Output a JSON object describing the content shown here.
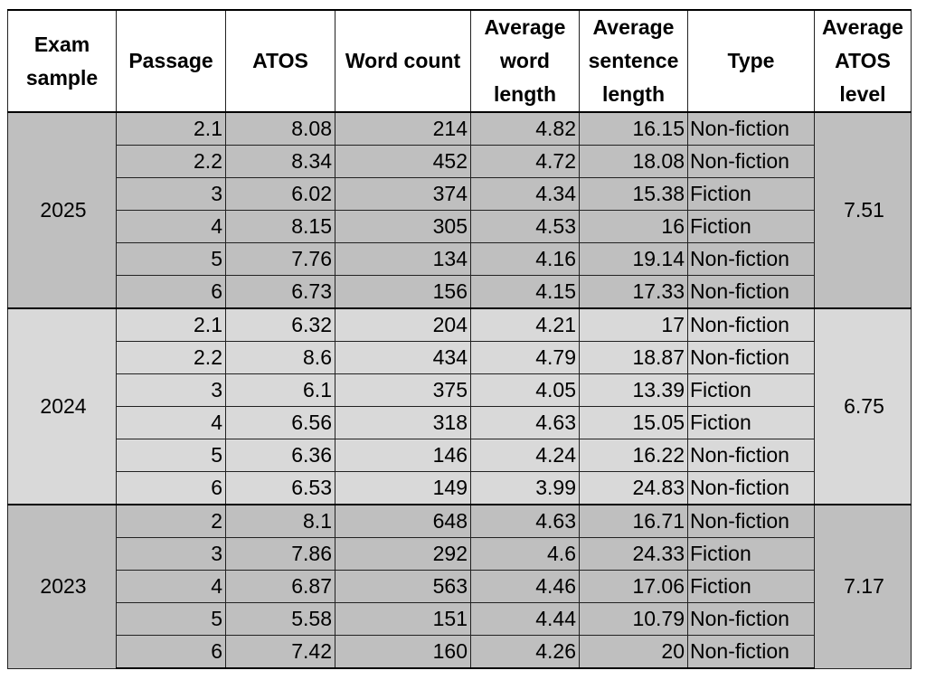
{
  "headers": [
    "Exam sample",
    "Passage",
    "ATOS",
    "Word count",
    "Average word length",
    "Average sentence length",
    "Type",
    "Average ATOS level"
  ],
  "groups": [
    {
      "year": "2025",
      "avg_atos": "7.51",
      "rows": [
        {
          "passage": "2.1",
          "atos": "8.08",
          "words": "214",
          "word_len": "4.82",
          "sent_len": "16.15",
          "type": "Non-fiction"
        },
        {
          "passage": "2.2",
          "atos": "8.34",
          "words": "452",
          "word_len": "4.72",
          "sent_len": "18.08",
          "type": "Non-fiction"
        },
        {
          "passage": "3",
          "atos": "6.02",
          "words": "374",
          "word_len": "4.34",
          "sent_len": "15.38",
          "type": "Fiction"
        },
        {
          "passage": "4",
          "atos": "8.15",
          "words": "305",
          "word_len": "4.53",
          "sent_len": "16",
          "type": "Fiction"
        },
        {
          "passage": "5",
          "atos": "7.76",
          "words": "134",
          "word_len": "4.16",
          "sent_len": "19.14",
          "type": "Non-fiction"
        },
        {
          "passage": "6",
          "atos": "6.73",
          "words": "156",
          "word_len": "4.15",
          "sent_len": "17.33",
          "type": "Non-fiction"
        }
      ]
    },
    {
      "year": "2024",
      "avg_atos": "6.75",
      "rows": [
        {
          "passage": "2.1",
          "atos": "6.32",
          "words": "204",
          "word_len": "4.21",
          "sent_len": "17",
          "type": "Non-fiction"
        },
        {
          "passage": "2.2",
          "atos": "8.6",
          "words": "434",
          "word_len": "4.79",
          "sent_len": "18.87",
          "type": "Non-fiction"
        },
        {
          "passage": "3",
          "atos": "6.1",
          "words": "375",
          "word_len": "4.05",
          "sent_len": "13.39",
          "type": "Fiction"
        },
        {
          "passage": "4",
          "atos": "6.56",
          "words": "318",
          "word_len": "4.63",
          "sent_len": "15.05",
          "type": "Fiction"
        },
        {
          "passage": "5",
          "atos": "6.36",
          "words": "146",
          "word_len": "4.24",
          "sent_len": "16.22",
          "type": "Non-fiction"
        },
        {
          "passage": "6",
          "atos": "6.53",
          "words": "149",
          "word_len": "3.99",
          "sent_len": "24.83",
          "type": "Non-fiction"
        }
      ]
    },
    {
      "year": "2023",
      "avg_atos": "7.17",
      "rows": [
        {
          "passage": "2",
          "atos": "8.1",
          "words": "648",
          "word_len": "4.63",
          "sent_len": "16.71",
          "type": "Non-fiction"
        },
        {
          "passage": "3",
          "atos": "7.86",
          "words": "292",
          "word_len": "4.6",
          "sent_len": "24.33",
          "type": "Fiction"
        },
        {
          "passage": "4",
          "atos": "6.87",
          "words": "563",
          "word_len": "4.46",
          "sent_len": "17.06",
          "type": "Fiction"
        },
        {
          "passage": "5",
          "atos": "5.58",
          "words": "151",
          "word_len": "4.44",
          "sent_len": "10.79",
          "type": "Non-fiction"
        },
        {
          "passage": "6",
          "atos": "7.42",
          "words": "160",
          "word_len": "4.26",
          "sent_len": "20",
          "type": "Non-fiction"
        }
      ]
    }
  ]
}
